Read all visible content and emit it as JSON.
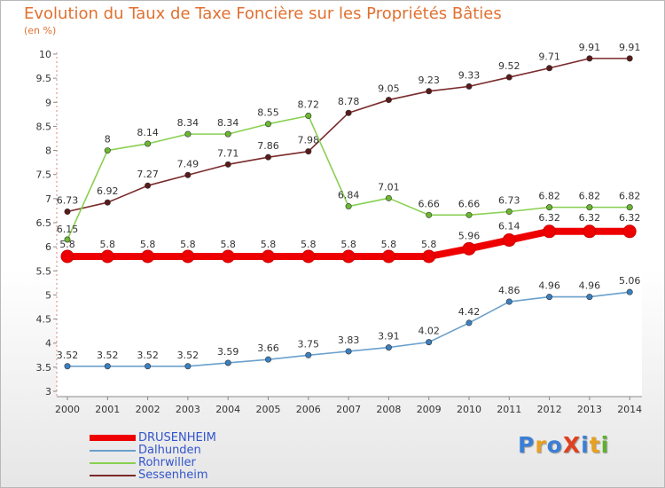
{
  "title": "Evolution du Taux de Taxe Foncière sur les Propriétés Bâties",
  "unit_label": "(en %)",
  "logo": {
    "text": "ProXiti",
    "colors": [
      "#3a7fd5",
      "#e8a020",
      "#3a7fd5",
      "#e04020",
      "#3a7fd5",
      "#e8a020",
      "#60b030"
    ]
  },
  "chart_data": {
    "type": "line",
    "title": "Evolution du Taux de Taxe Foncière sur les Propriétés Bâties",
    "ylabel": "(en %)",
    "xlabel": "",
    "ylim": [
      3,
      10
    ],
    "yticks": [
      "3",
      "3.5",
      "4",
      "4.5",
      "5",
      "5.5",
      "6",
      "6.5",
      "7",
      "7.5",
      "8",
      "8.5",
      "9",
      "9.5",
      "10"
    ],
    "x": [
      "2000",
      "2001",
      "2002",
      "2003",
      "2004",
      "2005",
      "2006",
      "2007",
      "2008",
      "2009",
      "2010",
      "2011",
      "2012",
      "2013",
      "2014"
    ],
    "grid": false,
    "legend_position": "bottom-left",
    "series": [
      {
        "name": "Sessenheim",
        "color": "#7a2a2a",
        "point_color": "#5a1a1a",
        "values": [
          6.73,
          6.92,
          7.27,
          7.49,
          7.71,
          7.86,
          7.98,
          8.78,
          9.05,
          9.23,
          9.33,
          9.52,
          9.71,
          9.91,
          9.91
        ],
        "labels": [
          "6.73",
          "6.92",
          "7.27",
          "7.49",
          "7.71",
          "7.86",
          "7.98",
          "8.78",
          "9.05",
          "9.23",
          "9.33",
          "9.52",
          "9.71",
          "9.91",
          "9.91"
        ]
      },
      {
        "name": "Rohrwiller",
        "color": "#88d050",
        "point_color": "#6ab830",
        "values": [
          6.15,
          8,
          8.14,
          8.34,
          8.34,
          8.55,
          8.72,
          6.84,
          7.01,
          6.66,
          6.66,
          6.73,
          6.82,
          6.82,
          6.82
        ],
        "labels": [
          "6.15",
          "8",
          "8.14",
          "8.34",
          "8.34",
          "8.55",
          "8.72",
          "6.84",
          "7.01",
          "6.66",
          "6.66",
          "6.73",
          "6.82",
          "6.82",
          "6.82"
        ]
      },
      {
        "name": "Dalhunden",
        "color": "#6aa0cc",
        "point_color": "#3a80c0",
        "values": [
          3.52,
          3.52,
          3.52,
          3.52,
          3.59,
          3.66,
          3.75,
          3.83,
          3.91,
          4.02,
          4.42,
          4.86,
          4.96,
          4.96,
          5.06
        ],
        "labels": [
          "3.52",
          "3.52",
          "3.52",
          "3.52",
          "3.59",
          "3.66",
          "3.75",
          "3.83",
          "3.91",
          "4.02",
          "4.42",
          "4.86",
          "4.96",
          "4.96",
          "5.06"
        ]
      },
      {
        "name": "DRUSENHEIM",
        "color": "#ee0000",
        "point_color": "#ee0000",
        "values": [
          5.8,
          5.8,
          5.8,
          5.8,
          5.8,
          5.8,
          5.8,
          5.8,
          5.8,
          5.8,
          5.96,
          6.14,
          6.32,
          6.32,
          6.32
        ],
        "labels": [
          "5.8",
          "5.8",
          "5.8",
          "5.8",
          "5.8",
          "5.8",
          "5.8",
          "5.8",
          "5.8",
          "5.8",
          "5.96",
          "6.14",
          "6.32",
          "6.32",
          "6.32"
        ]
      }
    ],
    "legend": [
      "DRUSENHEIM",
      "Dalhunden",
      "Rohrwiller",
      "Sessenheim"
    ]
  }
}
